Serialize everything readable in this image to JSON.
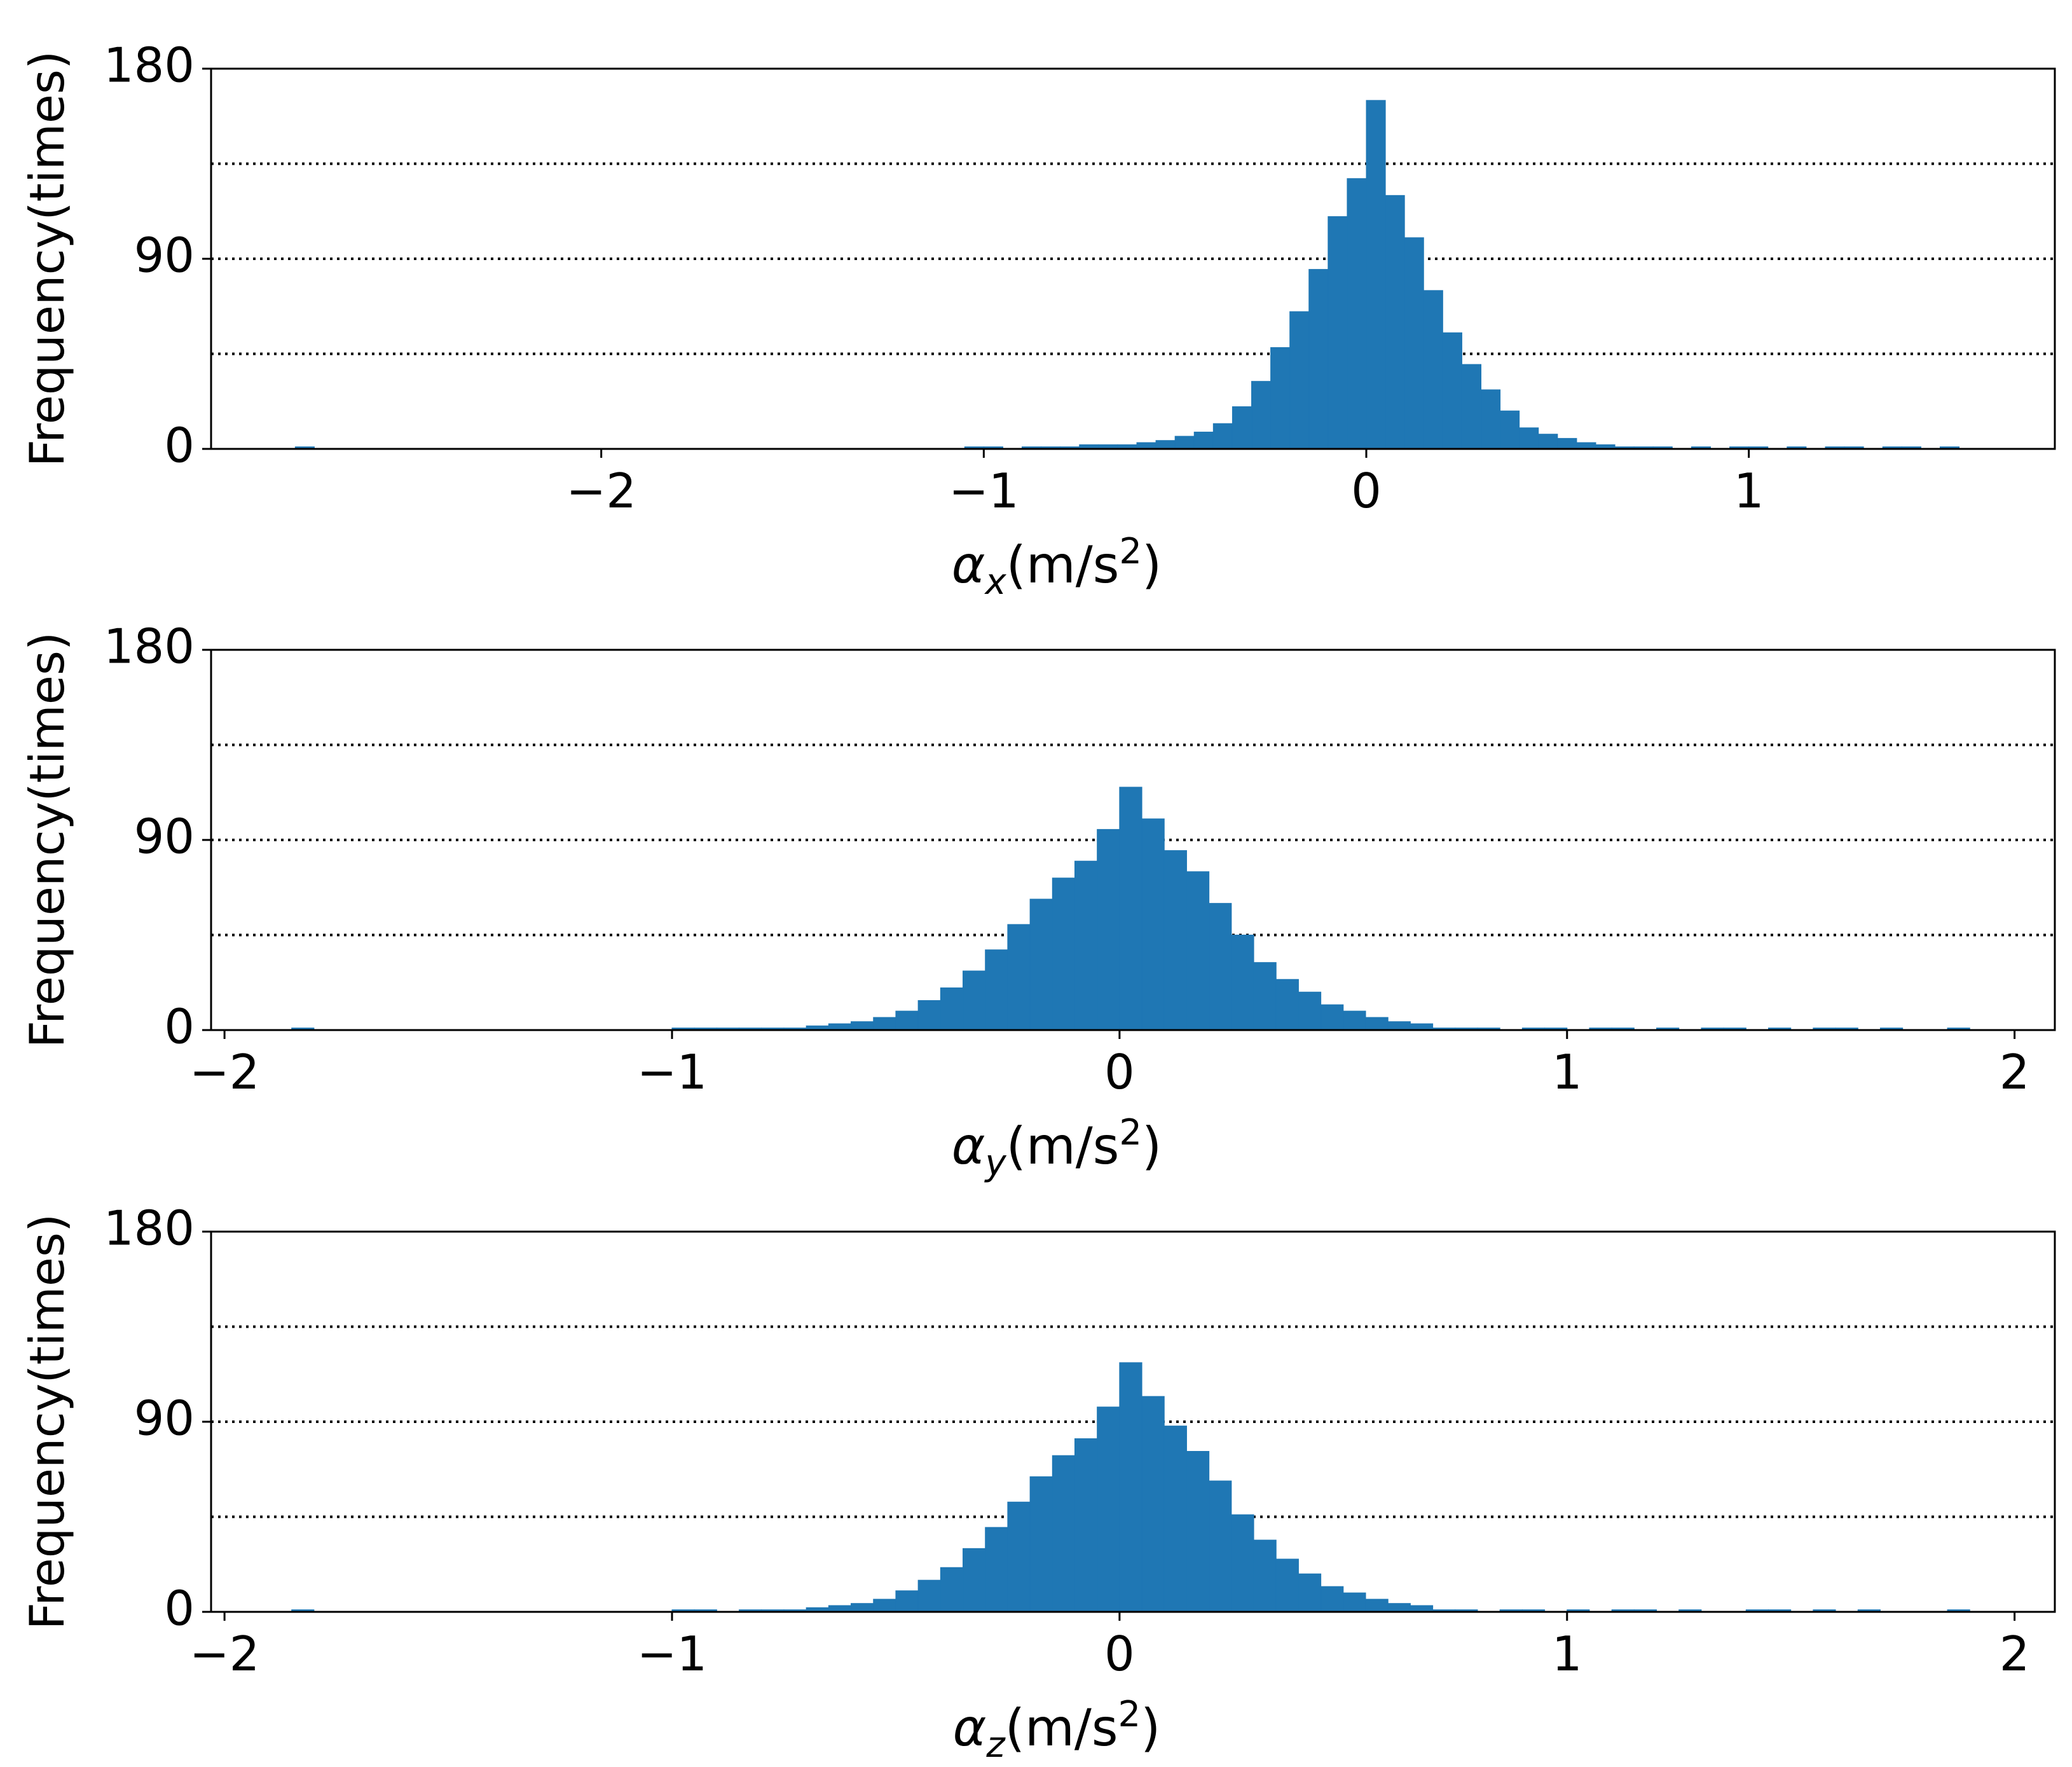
{
  "chart_data": [
    {
      "type": "histogram",
      "color": "#1f77b4",
      "ylabel": "Frequency(times)",
      "xlabel": [
        "α",
        "x",
        "(m/s",
        "2",
        ")"
      ],
      "xlim": [
        -3.02,
        1.8
      ],
      "ylim": [
        0,
        180
      ],
      "xticks": [
        {
          "value": -2,
          "label": "−2"
        },
        {
          "value": -1,
          "label": "−1"
        },
        0,
        1
      ],
      "yticks": [
        0,
        90,
        180
      ],
      "ygrid": [
        45,
        90,
        135
      ],
      "bins": [
        -2.8,
        -2.75,
        -2.7,
        -2.65,
        -2.6,
        -2.55,
        -2.5,
        -2.45,
        -2.4,
        -2.35,
        -2.3,
        -2.25,
        -2.2,
        -2.15,
        -2.1,
        -2.05,
        -2.0,
        -1.95,
        -1.9,
        -1.85,
        -1.8,
        -1.75,
        -1.7,
        -1.65,
        -1.6,
        -1.55,
        -1.5,
        -1.45,
        -1.4,
        -1.35,
        -1.3,
        -1.25,
        -1.2,
        -1.15,
        -1.1,
        -1.05,
        -1.0,
        -0.95,
        -0.9,
        -0.85,
        -0.8,
        -0.75,
        -0.7,
        -0.65,
        -0.6,
        -0.55,
        -0.5,
        -0.45,
        -0.4,
        -0.35,
        -0.3,
        -0.25,
        -0.2,
        -0.15,
        -0.1,
        -0.05,
        0,
        0.05,
        0.1,
        0.15,
        0.2,
        0.25,
        0.3,
        0.35,
        0.4,
        0.45,
        0.5,
        0.55,
        0.6,
        0.65,
        0.7,
        0.75,
        0.8,
        0.85,
        0.9,
        0.95,
        1.0,
        1.05,
        1.1,
        1.15,
        1.2,
        1.25,
        1.3,
        1.35,
        1.4,
        1.45,
        1.5,
        1.55,
        1.6
      ],
      "values": [
        1,
        0,
        0,
        0,
        0,
        0,
        0,
        0,
        0,
        0,
        0,
        0,
        0,
        0,
        0,
        0,
        0,
        0,
        0,
        0,
        0,
        0,
        0,
        0,
        0,
        0,
        0,
        0,
        0,
        0,
        0,
        0,
        0,
        0,
        0,
        1,
        1,
        0,
        1,
        1,
        1,
        2,
        2,
        2,
        3,
        4,
        6,
        8,
        12,
        20,
        32,
        48,
        65,
        85,
        110,
        128,
        165,
        120,
        100,
        75,
        55,
        40,
        28,
        18,
        10,
        7,
        5,
        3,
        2,
        1,
        1,
        1,
        0,
        1,
        0,
        1,
        1,
        0,
        1,
        0,
        1,
        1,
        0,
        1,
        1,
        0,
        1,
        0
      ]
    },
    {
      "type": "histogram",
      "color": "#1f77b4",
      "ylabel": "Frequency(times)",
      "xlabel": [
        "α",
        "y",
        "(m/s",
        "2",
        ")"
      ],
      "xlim": [
        -2.03,
        2.09
      ],
      "ylim": [
        0,
        180
      ],
      "xticks": [
        {
          "value": -2,
          "label": "−2"
        },
        {
          "value": -1,
          "label": "−1"
        },
        0,
        1,
        2
      ],
      "yticks": [
        0,
        90,
        180
      ],
      "ygrid": [
        45,
        90,
        135
      ],
      "bins": [
        -1.85,
        -1.8,
        -1.75,
        -1.7,
        -1.65,
        -1.6,
        -1.55,
        -1.5,
        -1.45,
        -1.4,
        -1.35,
        -1.3,
        -1.25,
        -1.2,
        -1.15,
        -1.1,
        -1.05,
        -1.0,
        -0.95,
        -0.9,
        -0.85,
        -0.8,
        -0.75,
        -0.7,
        -0.65,
        -0.6,
        -0.55,
        -0.5,
        -0.45,
        -0.4,
        -0.35,
        -0.3,
        -0.25,
        -0.2,
        -0.15,
        -0.1,
        -0.05,
        0,
        0.05,
        0.1,
        0.15,
        0.2,
        0.25,
        0.3,
        0.35,
        0.4,
        0.45,
        0.5,
        0.55,
        0.6,
        0.65,
        0.7,
        0.75,
        0.8,
        0.85,
        0.9,
        0.95,
        1.0,
        1.05,
        1.1,
        1.15,
        1.2,
        1.25,
        1.3,
        1.35,
        1.4,
        1.45,
        1.5,
        1.55,
        1.6,
        1.65,
        1.7,
        1.75,
        1.8,
        1.85,
        1.9
      ],
      "values": [
        1,
        0,
        0,
        0,
        0,
        0,
        0,
        0,
        0,
        0,
        0,
        0,
        0,
        0,
        0,
        0,
        0,
        1,
        1,
        1,
        1,
        1,
        1,
        2,
        3,
        4,
        6,
        9,
        14,
        20,
        28,
        38,
        50,
        62,
        72,
        80,
        95,
        115,
        100,
        85,
        75,
        60,
        45,
        32,
        24,
        18,
        12,
        9,
        6,
        4,
        3,
        1,
        1,
        1,
        0,
        1,
        1,
        0,
        1,
        1,
        0,
        1,
        0,
        1,
        1,
        0,
        1,
        0,
        1,
        1,
        0,
        1,
        0,
        0,
        1
      ]
    },
    {
      "type": "histogram",
      "color": "#1f77b4",
      "ylabel": "Frequency(times)",
      "xlabel": [
        "α",
        "z",
        "(m/s",
        "2",
        ")"
      ],
      "xlim": [
        -2.03,
        2.09
      ],
      "ylim": [
        0,
        180
      ],
      "xticks": [
        {
          "value": -2,
          "label": "−2"
        },
        {
          "value": -1,
          "label": "−1"
        },
        0,
        1,
        2
      ],
      "yticks": [
        0,
        90,
        180
      ],
      "ygrid": [
        45,
        90,
        135
      ],
      "bins": [
        -1.85,
        -1.8,
        -1.75,
        -1.7,
        -1.65,
        -1.6,
        -1.55,
        -1.5,
        -1.45,
        -1.4,
        -1.35,
        -1.3,
        -1.25,
        -1.2,
        -1.15,
        -1.1,
        -1.05,
        -1.0,
        -0.95,
        -0.9,
        -0.85,
        -0.8,
        -0.75,
        -0.7,
        -0.65,
        -0.6,
        -0.55,
        -0.5,
        -0.45,
        -0.4,
        -0.35,
        -0.3,
        -0.25,
        -0.2,
        -0.15,
        -0.1,
        -0.05,
        0,
        0.05,
        0.1,
        0.15,
        0.2,
        0.25,
        0.3,
        0.35,
        0.4,
        0.45,
        0.5,
        0.55,
        0.6,
        0.65,
        0.7,
        0.75,
        0.8,
        0.85,
        0.9,
        0.95,
        1.0,
        1.05,
        1.1,
        1.15,
        1.2,
        1.25,
        1.3,
        1.35,
        1.4,
        1.45,
        1.5,
        1.55,
        1.6,
        1.65,
        1.7,
        1.75,
        1.8,
        1.85,
        1.9
      ],
      "values": [
        1,
        0,
        0,
        0,
        0,
        0,
        0,
        0,
        0,
        0,
        0,
        0,
        0,
        0,
        0,
        0,
        0,
        1,
        1,
        0,
        1,
        1,
        1,
        2,
        3,
        4,
        6,
        10,
        15,
        21,
        30,
        40,
        52,
        64,
        74,
        82,
        97,
        118,
        102,
        88,
        76,
        62,
        46,
        34,
        25,
        18,
        12,
        9,
        6,
        4,
        3,
        1,
        1,
        0,
        1,
        1,
        0,
        1,
        0,
        1,
        1,
        0,
        1,
        0,
        0,
        1,
        1,
        0,
        1,
        0,
        1,
        0,
        0,
        0,
        1
      ]
    }
  ]
}
